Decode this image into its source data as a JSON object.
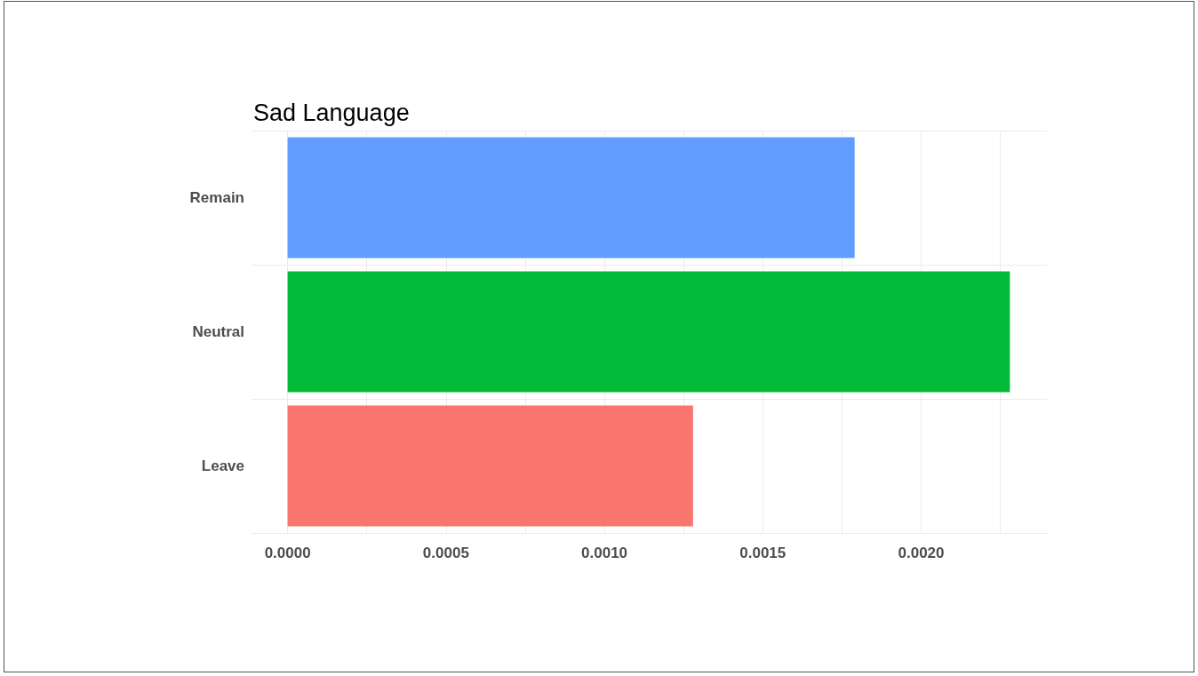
{
  "chart_data": {
    "type": "bar",
    "orientation": "horizontal",
    "title": "Sad Language",
    "categories": [
      "Remain",
      "Neutral",
      "Leave"
    ],
    "values": [
      0.00179,
      0.00228,
      0.00128
    ],
    "colors": [
      "#619cff",
      "#00ba38",
      "#f8766d"
    ],
    "xlim": [
      -0.000114,
      0.002397
    ],
    "xticks": [
      {
        "value": 0,
        "label": "0.0000"
      },
      {
        "value": 0.00025,
        "label": null
      },
      {
        "value": 0.0005,
        "label": "0.0005"
      },
      {
        "value": 0.00075,
        "label": null
      },
      {
        "value": 0.001,
        "label": "0.0010"
      },
      {
        "value": 0.00125,
        "label": null
      },
      {
        "value": 0.0015,
        "label": "0.0015"
      },
      {
        "value": 0.00175,
        "label": null
      },
      {
        "value": 0.002,
        "label": "0.0020"
      },
      {
        "value": 0.00225,
        "label": null
      }
    ],
    "grid": true
  }
}
